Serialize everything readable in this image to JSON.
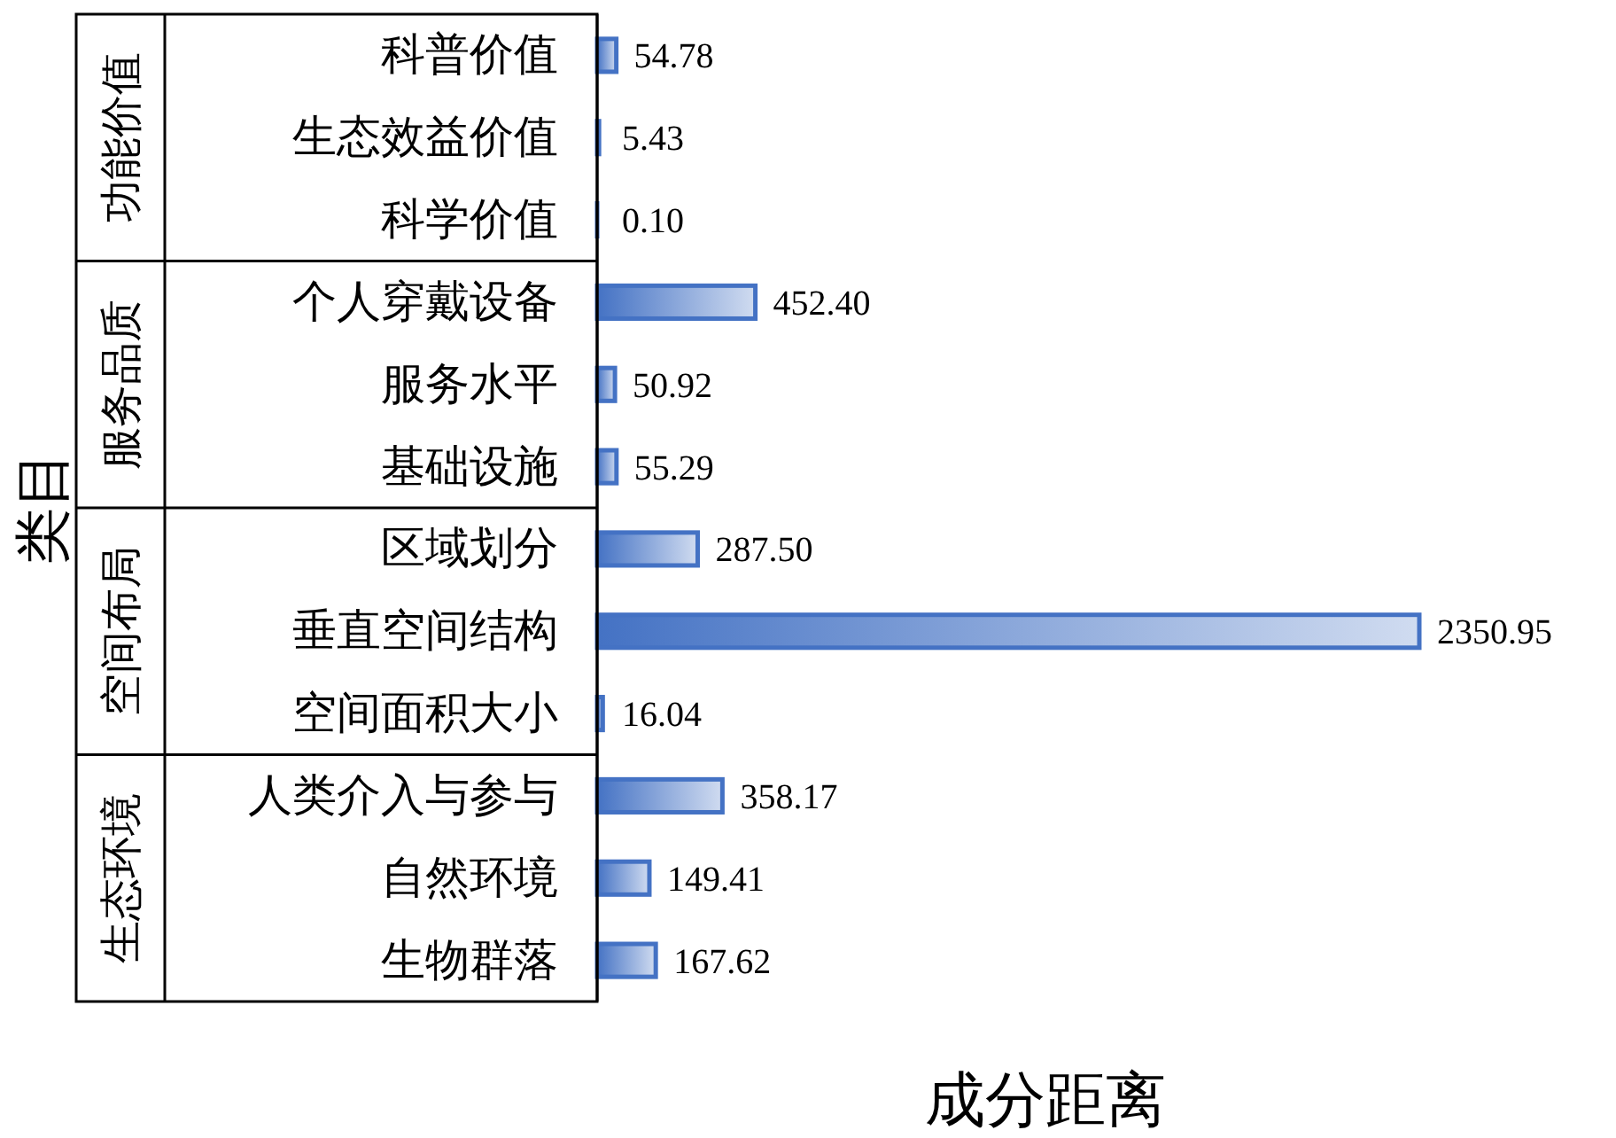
{
  "chart_data": {
    "type": "bar",
    "orientation": "horizontal",
    "xlabel": "成分距离",
    "ylabel": "类目",
    "categories": [
      "科普价值",
      "生态效益价值",
      "科学价值",
      "个人穿戴设备",
      "服务水平",
      "基础设施",
      "区域划分",
      "垂直空间结构",
      "空间面积大小",
      "人类介入与参与",
      "自然环境",
      "生物群落"
    ],
    "values": [
      54.78,
      5.43,
      0.1,
      452.4,
      50.92,
      55.29,
      287.5,
      2350.95,
      16.04,
      358.17,
      149.41,
      167.62
    ],
    "value_labels": [
      "54.78",
      "5.43",
      "0.10",
      "452.40",
      "50.92",
      "55.29",
      "287.50",
      "2350.95",
      "16.04",
      "358.17",
      "149.41",
      "167.62"
    ],
    "color": "#4472c4",
    "annotations": [
      "功能价值",
      "服务品质",
      "空间布局",
      "生态环境"
    ]
  }
}
